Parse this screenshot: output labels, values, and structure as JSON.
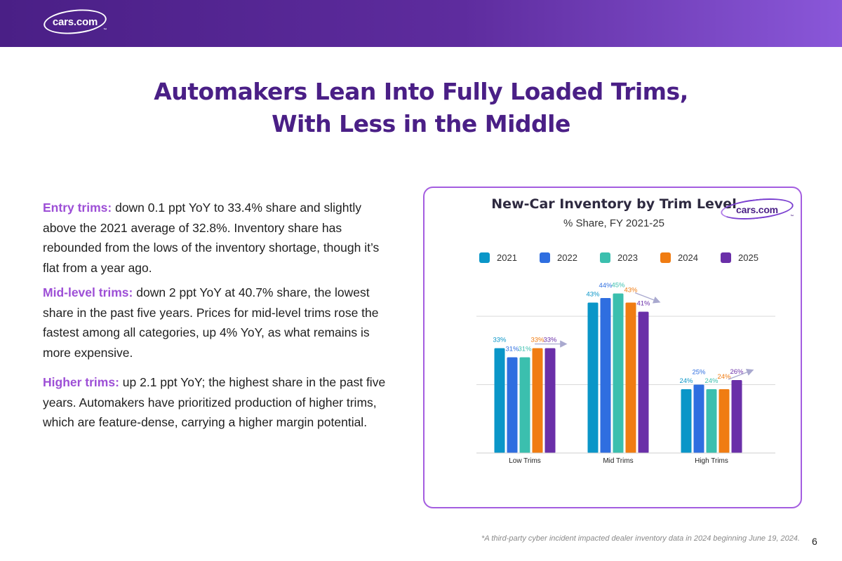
{
  "brand": {
    "logo_text": "cars.com",
    "tm": "™"
  },
  "title": {
    "line1": "Automakers Lean Into Fully Loaded Trims,",
    "line2": "With Less in the Middle"
  },
  "paragraphs": [
    {
      "lead": "Entry trims:",
      "text": " down 0.1 ppt YoY to 33.4% share and slightly above the 2021 average of 32.8%. Inventory share has rebounded from the lows of the inventory shortage, though it’s flat from a year ago."
    },
    {
      "lead": "Mid-level trims:",
      "text": " down 2 ppt YoY at 40.7% share, the lowest share in the past five years. Prices for mid-level trims rose the fastest among all categories, up 4% YoY, as what remains is more expensive."
    },
    {
      "lead": "Higher trims:",
      "text": " up 2.1 ppt YoY; the highest share in the past five years. Automakers have prioritized production of higher trims, which are feature-dense, carrying a higher margin potential."
    }
  ],
  "footnote": "*A third-party cyber incident impacted dealer inventory data in 2024 beginning June 19, 2024.",
  "page_number": "6",
  "colors": {
    "2021": "#0a96c8",
    "2022": "#2f6ee0",
    "2023": "#3bbfae",
    "2024": "#f07c12",
    "2025": "#6a2fa8",
    "arrow": "#a9a9cf",
    "grid": "#d9d9d9"
  },
  "chart_data": {
    "type": "bar",
    "title": "New-Car Inventory by Trim Level",
    "subtitle": "% Share, FY 2021-25",
    "categories": [
      "Low Trims",
      "Mid Trims",
      "High Trims"
    ],
    "series": [
      {
        "name": "2021",
        "values": [
          33,
          43,
          24
        ],
        "labels": [
          "33%",
          "43%",
          "24%"
        ]
      },
      {
        "name": "2022",
        "values": [
          31,
          44,
          25
        ],
        "labels": [
          "31%",
          "44%",
          "25%"
        ]
      },
      {
        "name": "2023",
        "values": [
          31,
          45,
          24
        ],
        "labels": [
          "31%",
          "45%",
          "24%"
        ]
      },
      {
        "name": "2024",
        "values": [
          33,
          43,
          24
        ],
        "labels": [
          "33%",
          "43%",
          "24%"
        ]
      },
      {
        "name": "2025",
        "values": [
          33,
          41,
          26
        ],
        "labels": [
          "33%",
          "41%",
          "26%"
        ]
      }
    ],
    "ylim": [
      10,
      50
    ],
    "gridlines": [
      10,
      25,
      40
    ],
    "legend_position": "top",
    "annotations": [
      "trend arrow on 2024 to 2025 in each category"
    ]
  }
}
